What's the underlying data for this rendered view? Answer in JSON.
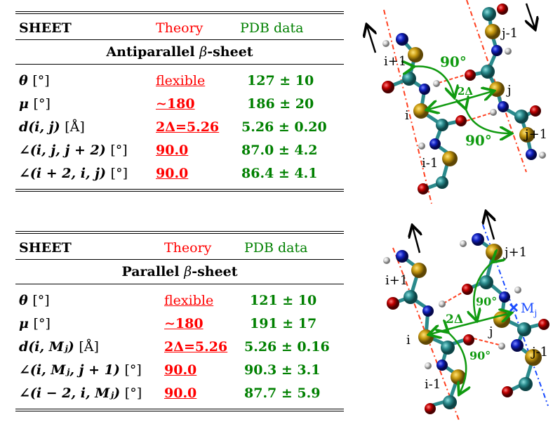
{
  "tables": [
    {
      "header": {
        "label": "SHEET",
        "theory": "Theory",
        "pdb": "PDB data"
      },
      "subtitle": {
        "prefix": "Antiparallel ",
        "beta": "β",
        "suffix": "-sheet"
      },
      "rows": [
        {
          "symbol": "θ",
          "unit": "[°]",
          "theory": "flexible",
          "pdb": "127 ± 10"
        },
        {
          "symbol": "μ",
          "unit": "[°]",
          "theory": "∼180",
          "pdb": "186 ± 20"
        },
        {
          "symbol": "d(i, j)",
          "unit": "[Å]",
          "theory": "2Δ=5.26",
          "pdb": "5.26 ± 0.20"
        },
        {
          "symbol": "∠(i, j, j + 2)",
          "unit": "[°]",
          "theory": "90.0",
          "pdb": "87.0 ± 4.2"
        },
        {
          "symbol": "∠(i + 2, i, j)",
          "unit": "[°]",
          "theory": "90.0",
          "pdb": "86.4 ± 4.1"
        }
      ]
    },
    {
      "header": {
        "label": "SHEET",
        "theory": "Theory",
        "pdb": "PDB data"
      },
      "subtitle": {
        "prefix": "Parallel ",
        "beta": "β",
        "suffix": "-sheet"
      },
      "rows": [
        {
          "symbol": "θ",
          "unit": "[°]",
          "theory": "flexible",
          "pdb": "121 ± 10"
        },
        {
          "symbol": "μ",
          "unit": "[°]",
          "theory": "∼180",
          "pdb": "191 ± 17"
        },
        {
          "symbol": "d(i, Mⱼ)",
          "unit": "[Å]",
          "theory": "2Δ=5.26",
          "pdb": "5.26 ± 0.16"
        },
        {
          "symbol": "∠(i, Mⱼ, j + 1)",
          "unit": "[°]",
          "theory": "90.0",
          "pdb": "90.3 ± 3.1"
        },
        {
          "symbol": "∠(i − 2, i, Mⱼ)",
          "unit": "[°]",
          "theory": "90.0",
          "pdb": "87.7 ± 5.9"
        }
      ]
    }
  ],
  "figures": {
    "antiparallel": {
      "labels": {
        "i_plus_1": "i+1",
        "i": "i",
        "i_minus_1": "i-1",
        "j_minus_1": "j-1",
        "j": "j",
        "j_plus_1": "j+1"
      },
      "angle_top": "90°",
      "angle_bottom": "90°",
      "distance": "2Δ"
    },
    "parallel": {
      "labels": {
        "i_plus_1": "i+1",
        "i": "i",
        "i_minus_1": "i-1",
        "j_plus_1": "j+1",
        "j": "j",
        "j_minus_1": "j-1"
      },
      "midpoint": "M",
      "midpoint_sub": "j",
      "angle_top": "90°",
      "angle_bottom": "90°",
      "distance": "2Δ"
    }
  },
  "colors": {
    "theory": "#ff0000",
    "pdb": "#008000",
    "carbon": "#2a8a8c",
    "calpha": "#c89a10",
    "nitrogen": "#1020c0",
    "oxygen": "#c00000",
    "hydrogen": "#d8d8d8",
    "arrow": "#109a10",
    "axis_red": "#ff4020",
    "axis_blue": "#1a4cff"
  }
}
